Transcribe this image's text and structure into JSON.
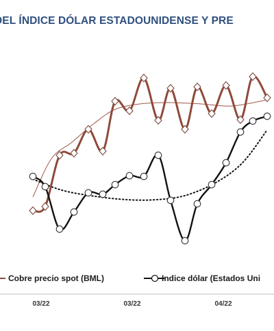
{
  "chart_data": {
    "type": "line",
    "title": "DEL ÍNDICE DÓLAR ESTADOUNIDENSE Y PRE",
    "x_tick_labels": [
      "03/22",
      "03/22",
      "04/22"
    ],
    "grid": false,
    "legend_placement": "bottom",
    "series": [
      {
        "name": "Cobre precio spot (BML)",
        "color": "#8e4a3a",
        "marker": "diamond-open",
        "values": [
          [
            1.6,
            308
          ],
          [
            2.2,
            302
          ],
          [
            2.9,
            227
          ],
          [
            3.6,
            224
          ],
          [
            4.3,
            189
          ],
          [
            5.0,
            221
          ],
          [
            5.6,
            148
          ],
          [
            6.3,
            162
          ],
          [
            7.0,
            114
          ],
          [
            7.7,
            176
          ],
          [
            8.3,
            129
          ],
          [
            9.0,
            189
          ],
          [
            9.6,
            127
          ],
          [
            10.3,
            166
          ],
          [
            11.0,
            125
          ],
          [
            11.7,
            175
          ],
          [
            12.3,
            112
          ],
          [
            13.0,
            143
          ]
        ]
      },
      {
        "name": "Indice dólar (Estados Uni",
        "color": "#111111",
        "marker": "circle-open",
        "values": [
          [
            1.6,
            258
          ],
          [
            2.2,
            273
          ],
          [
            2.9,
            335
          ],
          [
            3.6,
            310
          ],
          [
            4.3,
            282
          ],
          [
            5.0,
            284
          ],
          [
            5.6,
            270
          ],
          [
            6.3,
            257
          ],
          [
            7.0,
            258
          ],
          [
            7.7,
            227
          ],
          [
            8.3,
            293
          ],
          [
            9.0,
            352
          ],
          [
            9.6,
            298
          ],
          [
            10.3,
            270
          ],
          [
            11.0,
            238
          ],
          [
            11.7,
            193
          ],
          [
            12.3,
            177
          ],
          [
            13.0,
            170
          ]
        ]
      }
    ],
    "trendlines": [
      {
        "series": "Cobre precio spot (BML)",
        "color": "#a05545",
        "style": "solid",
        "values": [
          [
            1.6,
            288
          ],
          [
            2.5,
            232
          ],
          [
            3.5,
            208
          ],
          [
            4.6,
            180
          ],
          [
            5.6,
            160
          ],
          [
            6.8,
            152
          ],
          [
            8.2,
            150
          ],
          [
            9.8,
            152
          ],
          [
            11.3,
            155
          ],
          [
            13.0,
            146
          ]
        ]
      },
      {
        "series": "Indice dólar (Estados Uni",
        "color": "#111111",
        "style": "dotted",
        "values": [
          [
            1.6,
            262
          ],
          [
            3.0,
            278
          ],
          [
            4.6,
            287
          ],
          [
            6.2,
            292
          ],
          [
            7.6,
            292
          ],
          [
            9.0,
            286
          ],
          [
            10.5,
            267
          ],
          [
            11.8,
            238
          ],
          [
            13.0,
            190
          ]
        ]
      }
    ]
  }
}
